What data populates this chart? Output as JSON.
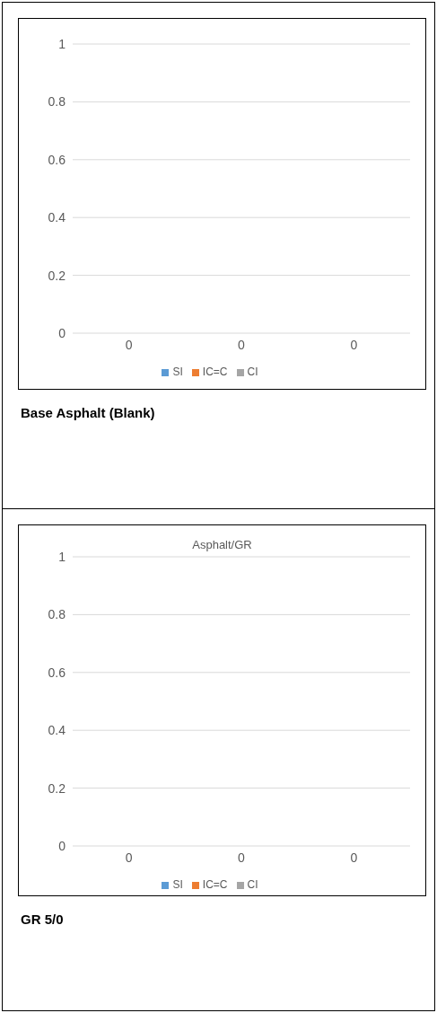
{
  "chart_data": [
    {
      "type": "bar",
      "categories": [
        "0",
        "0",
        "0"
      ],
      "series": [
        {
          "name": "SI",
          "color": "#5b9bd5",
          "values": [
            0,
            0,
            0
          ]
        },
        {
          "name": "IC=C",
          "color": "#ed7d31",
          "values": [
            0,
            0,
            0
          ]
        },
        {
          "name": "CI",
          "color": "#a5a5a5",
          "values": [
            0,
            0,
            0
          ]
        }
      ],
      "ylim": [
        0,
        1
      ],
      "yticks": [
        0,
        0.2,
        0.4,
        0.6,
        0.8,
        1
      ],
      "grid": "y",
      "legend": "bottom",
      "annotations": [
        "Base Asphalt (Blank)"
      ]
    },
    {
      "type": "bar",
      "title": "Asphalt/GR",
      "categories": [
        "0",
        "0",
        "0"
      ],
      "series": [
        {
          "name": "SI",
          "color": "#5b9bd5",
          "values": [
            0,
            0,
            0
          ]
        },
        {
          "name": "IC=C",
          "color": "#ed7d31",
          "values": [
            0,
            0,
            0
          ]
        },
        {
          "name": "CI",
          "color": "#a5a5a5",
          "values": [
            0,
            0,
            0
          ]
        }
      ],
      "ylim": [
        0,
        1
      ],
      "yticks": [
        0,
        0.2,
        0.4,
        0.6,
        0.8,
        1
      ],
      "grid": "y",
      "legend": "bottom",
      "annotations": [
        "GR 5/0"
      ]
    }
  ]
}
